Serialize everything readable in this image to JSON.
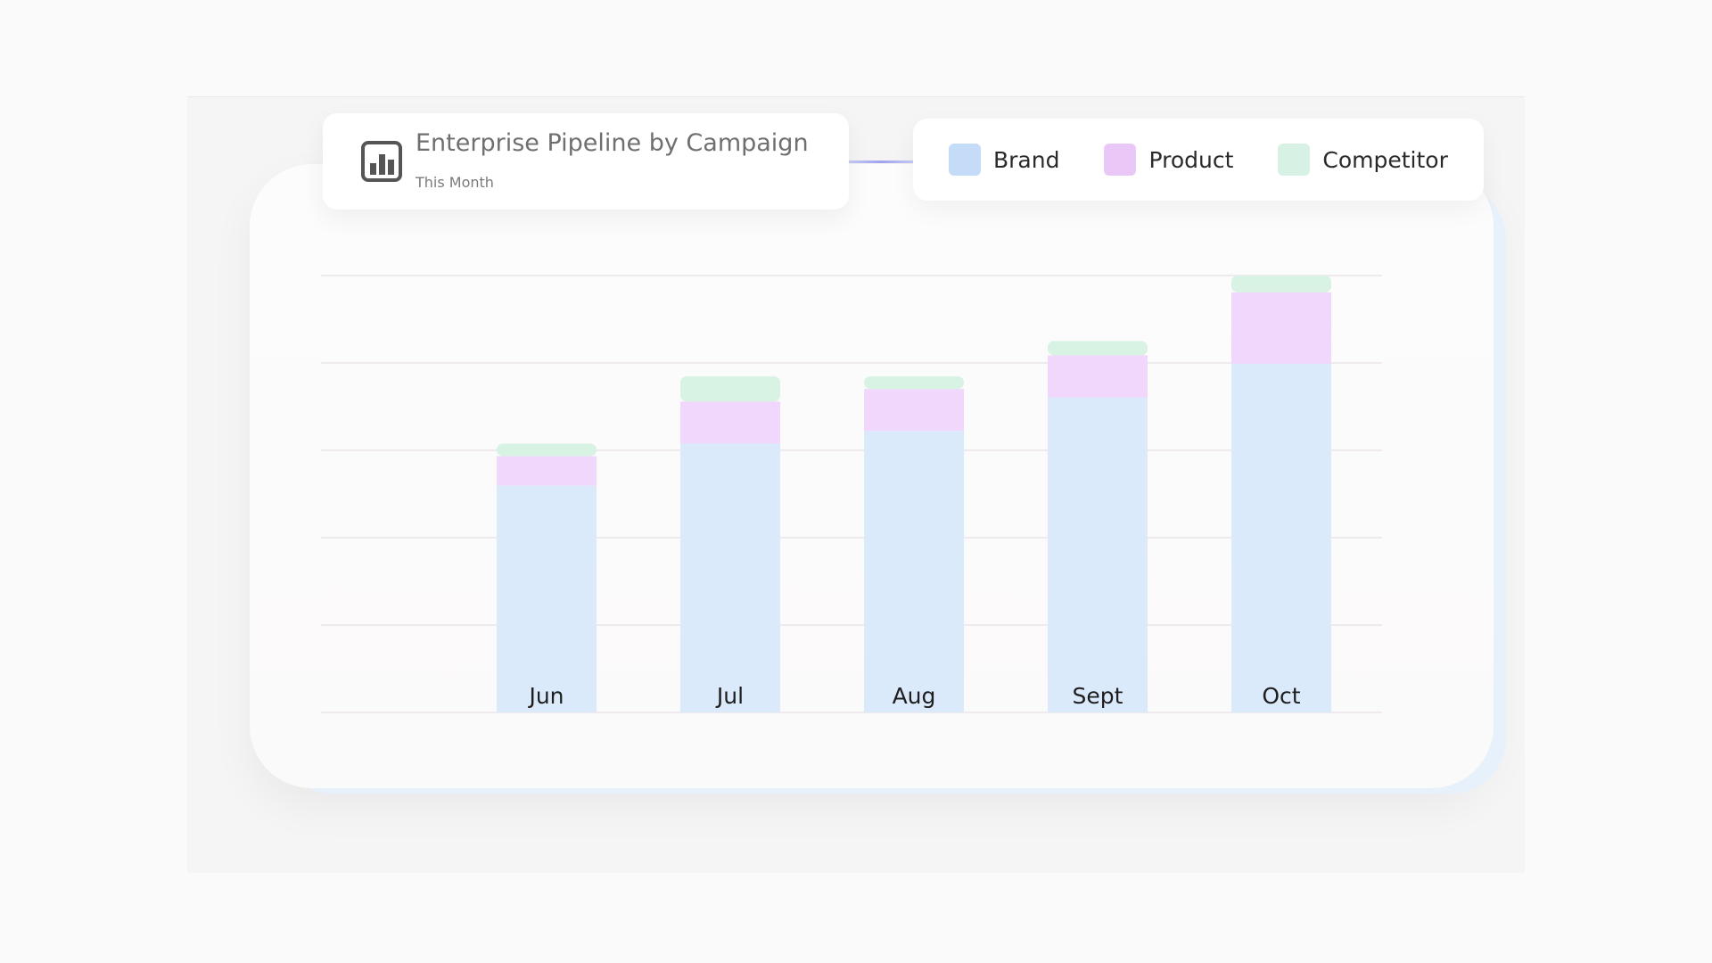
{
  "header": {
    "title": "Enterprise Pipeline by Campaign",
    "subtitle": "This Month",
    "icon": "bar-chart-icon"
  },
  "legend": [
    {
      "label": "Brand",
      "color": "#c5dcf8"
    },
    {
      "label": "Product",
      "color": "#e9c8f7"
    },
    {
      "label": "Competitor",
      "color": "#d7f1e4"
    }
  ],
  "chart_data": {
    "type": "bar",
    "stacked": true,
    "categories": [
      "Jun",
      "Jul",
      "Aug",
      "Sept",
      "Oct"
    ],
    "series": [
      {
        "name": "Brand",
        "color": "#dbeafb",
        "values": [
          270,
          320,
          335,
          375,
          415
        ]
      },
      {
        "name": "Product",
        "color": "#f1d7fb",
        "values": [
          35,
          50,
          50,
          50,
          85
        ]
      },
      {
        "name": "Competitor",
        "color": "#d8f2e4",
        "values": [
          15,
          30,
          15,
          17,
          20
        ]
      }
    ],
    "title": "Enterprise Pipeline by Campaign",
    "subtitle": "This Month",
    "ylim": [
      0,
      520
    ],
    "grid": true,
    "legend_position": "top-right"
  }
}
